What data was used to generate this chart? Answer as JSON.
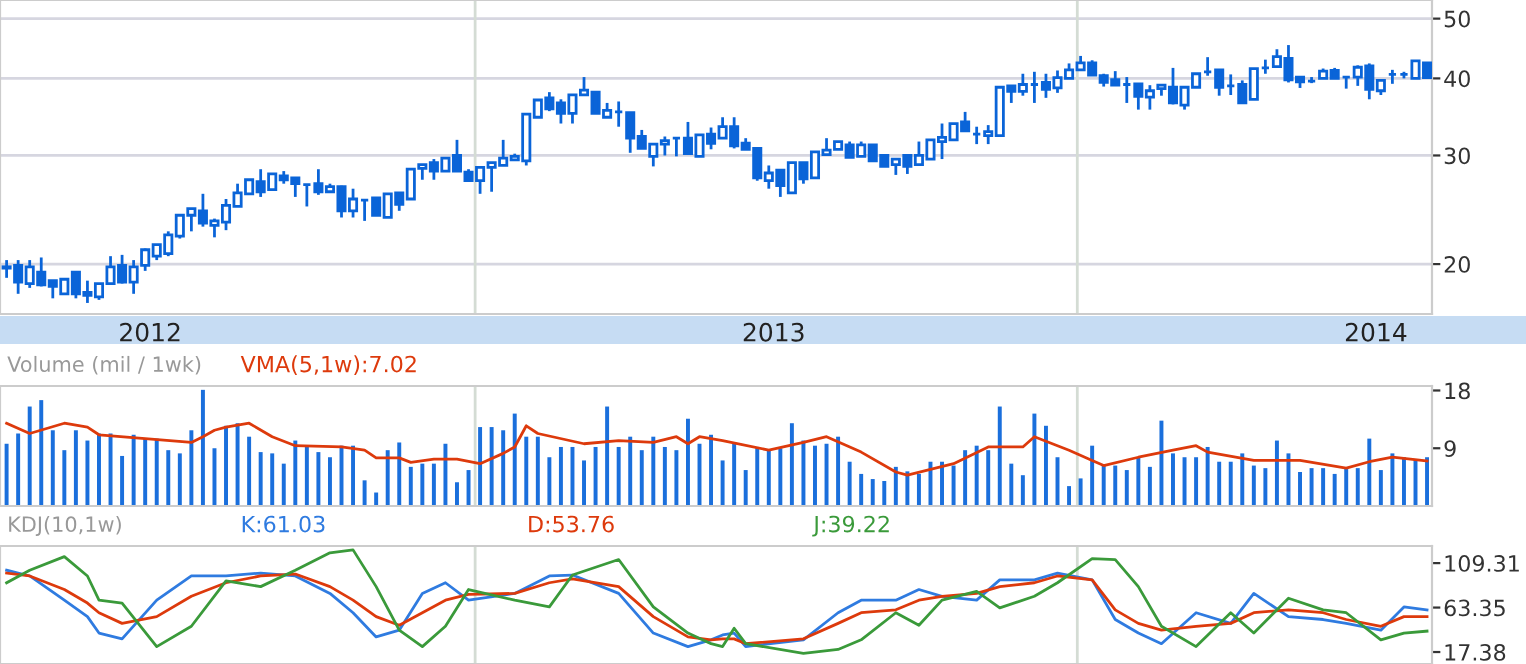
{
  "chart_data": [
    {
      "type": "candlestick",
      "color": "#0a64d8",
      "log": "y",
      "grid": "y",
      "x": [
        "2012-03-23",
        "2012-03-30",
        "2012-04-06",
        "2012-04-13",
        "2012-04-20",
        "2012-04-27",
        "2012-05-04",
        "2012-05-11",
        "2012-05-18",
        "2012-05-25",
        "2012-06-01",
        "2012-06-08",
        "2012-06-15",
        "2012-06-22",
        "2012-06-29",
        "2012-07-06",
        "2012-07-13",
        "2012-07-20",
        "2012-07-27",
        "2012-08-03",
        "2012-08-10",
        "2012-08-17",
        "2012-08-24",
        "2012-08-31",
        "2012-09-07",
        "2012-09-14",
        "2012-09-21",
        "2012-09-28",
        "2012-10-05",
        "2012-10-12",
        "2012-10-19",
        "2012-10-26",
        "2012-11-02",
        "2012-11-09",
        "2012-11-16",
        "2012-11-23",
        "2012-11-30",
        "2012-12-07",
        "2012-12-14",
        "2012-12-21",
        "2012-12-28",
        "2013-01-04",
        "2013-01-11",
        "2013-01-18",
        "2013-01-25",
        "2013-02-01",
        "2013-02-08",
        "2013-02-15",
        "2013-02-22",
        "2013-03-01",
        "2013-03-08",
        "2013-03-15",
        "2013-03-22",
        "2013-03-29",
        "2013-04-05",
        "2013-04-12",
        "2013-04-19",
        "2013-04-26",
        "2013-05-03",
        "2013-05-10",
        "2013-05-17",
        "2013-05-24",
        "2013-05-31",
        "2013-06-07",
        "2013-06-14",
        "2013-06-21",
        "2013-06-28",
        "2013-07-05",
        "2013-07-12",
        "2013-07-19",
        "2013-07-26",
        "2013-08-02",
        "2013-08-09",
        "2013-08-16",
        "2013-08-23",
        "2013-08-30",
        "2013-09-06",
        "2013-09-13",
        "2013-09-20",
        "2013-09-27",
        "2013-10-04",
        "2013-10-11",
        "2013-10-18",
        "2013-10-25",
        "2013-11-01",
        "2013-11-08",
        "2013-11-15",
        "2013-11-22",
        "2013-11-29",
        "2013-12-06",
        "2013-12-13",
        "2013-12-20",
        "2013-12-27",
        "2014-01-03",
        "2014-01-10",
        "2014-01-17",
        "2014-01-24",
        "2014-01-31",
        "2014-02-07",
        "2014-02-14",
        "2014-02-21",
        "2014-02-28",
        "2014-03-07",
        "2014-03-14",
        "2014-03-21",
        "2014-03-28",
        "2014-04-04",
        "2014-04-11",
        "2014-04-18",
        "2014-04-25",
        "2014-05-02",
        "2014-05-09",
        "2014-05-16",
        "2014-05-23",
        "2014-05-30",
        "2014-06-06",
        "2014-06-13",
        "2014-06-20",
        "2014-06-27",
        "2014-07-04",
        "2014-07-11",
        "2014-07-18",
        "2014-07-25",
        "2014-08-01"
      ],
      "ohlc": [
        [
          19.8,
          20.3,
          19.0,
          19.7
        ],
        [
          19.9,
          20.3,
          17.9,
          18.7
        ],
        [
          18.6,
          20.3,
          18.3,
          19.8
        ],
        [
          19.4,
          20.5,
          18.4,
          18.5
        ],
        [
          18.8,
          18.8,
          17.6,
          18.4
        ],
        [
          17.9,
          18.9,
          17.9,
          18.9
        ],
        [
          19.4,
          19.4,
          17.6,
          17.9
        ],
        [
          18.0,
          18.8,
          17.3,
          17.8
        ],
        [
          17.7,
          18.6,
          17.5,
          18.6
        ],
        [
          18.6,
          20.6,
          18.6,
          19.8
        ],
        [
          19.9,
          20.7,
          18.6,
          18.7
        ],
        [
          18.7,
          20.3,
          17.9,
          19.8
        ],
        [
          19.9,
          21.2,
          19.5,
          21.1
        ],
        [
          20.6,
          21.5,
          20.3,
          21.5
        ],
        [
          20.8,
          22.6,
          20.6,
          22.3
        ],
        [
          22.2,
          24.0,
          22.0,
          24.0
        ],
        [
          24.0,
          24.6,
          22.6,
          24.6
        ],
        [
          24.4,
          26.0,
          23.0,
          23.3
        ],
        [
          23.1,
          23.7,
          22.1,
          23.5
        ],
        [
          23.4,
          25.5,
          22.7,
          24.9
        ],
        [
          24.8,
          27.0,
          24.8,
          26.1
        ],
        [
          26.0,
          27.4,
          26.0,
          27.4
        ],
        [
          27.2,
          28.5,
          25.7,
          26.2
        ],
        [
          26.4,
          28.0,
          26.4,
          28.0
        ],
        [
          27.8,
          28.3,
          27.0,
          27.4
        ],
        [
          27.6,
          27.6,
          25.7,
          27.0
        ],
        [
          26.9,
          26.9,
          24.8,
          26.9
        ],
        [
          27.0,
          28.5,
          25.9,
          26.2
        ],
        [
          26.2,
          27.0,
          26.2,
          26.7
        ],
        [
          26.7,
          26.8,
          23.8,
          24.4
        ],
        [
          24.4,
          26.5,
          23.8,
          25.5
        ],
        [
          25.4,
          25.4,
          23.5,
          25.4
        ],
        [
          25.6,
          25.6,
          24.0,
          24.0
        ],
        [
          23.8,
          26.0,
          23.8,
          26.0
        ],
        [
          26.1,
          26.1,
          24.4,
          25.0
        ],
        [
          25.5,
          28.5,
          25.5,
          28.5
        ],
        [
          28.6,
          29.0,
          27.4,
          29.0
        ],
        [
          29.2,
          29.6,
          27.4,
          28.3
        ],
        [
          28.3,
          29.7,
          28.3,
          29.7
        ],
        [
          30.0,
          31.8,
          28.3,
          28.3
        ],
        [
          28.2,
          28.5,
          27.3,
          27.3
        ],
        [
          27.3,
          28.7,
          26.0,
          28.7
        ],
        [
          28.7,
          29.2,
          26.2,
          29.2
        ],
        [
          28.9,
          31.8,
          28.9,
          29.7
        ],
        [
          29.5,
          30.2,
          29.4,
          29.9
        ],
        [
          29.4,
          35.0,
          28.9,
          35.0
        ],
        [
          34.6,
          36.9,
          34.6,
          36.9
        ],
        [
          37.2,
          38.0,
          35.4,
          35.7
        ],
        [
          36.5,
          37.0,
          33.8,
          35.1
        ],
        [
          35.1,
          37.6,
          33.8,
          37.6
        ],
        [
          37.6,
          40.2,
          37.6,
          38.3
        ],
        [
          38.0,
          38.0,
          35.1,
          35.1
        ],
        [
          34.6,
          36.5,
          34.6,
          35.5
        ],
        [
          35.3,
          36.7,
          33.4,
          35.3
        ],
        [
          35.2,
          35.2,
          30.3,
          32.0
        ],
        [
          32.2,
          33.0,
          30.8,
          30.8
        ],
        [
          29.9,
          31.3,
          28.8,
          31.3
        ],
        [
          31.3,
          32.2,
          30.0,
          31.7
        ],
        [
          32.0,
          32.0,
          29.9,
          32.0
        ],
        [
          32.0,
          34.0,
          30.2,
          30.2
        ],
        [
          29.9,
          32.4,
          29.9,
          32.4
        ],
        [
          32.5,
          33.3,
          30.7,
          31.4
        ],
        [
          32.0,
          34.6,
          32.0,
          33.4
        ],
        [
          33.4,
          34.6,
          30.8,
          31.1
        ],
        [
          31.4,
          32.0,
          30.7,
          30.7
        ],
        [
          30.8,
          30.8,
          27.3,
          27.6
        ],
        [
          27.3,
          28.9,
          26.5,
          28.1
        ],
        [
          28.4,
          28.4,
          25.7,
          26.8
        ],
        [
          26.1,
          29.2,
          26.1,
          29.2
        ],
        [
          29.2,
          29.2,
          27.0,
          27.5
        ],
        [
          27.6,
          30.4,
          27.6,
          30.4
        ],
        [
          30.1,
          32.0,
          30.1,
          30.6
        ],
        [
          30.7,
          31.6,
          30.7,
          31.6
        ],
        [
          31.2,
          31.6,
          29.8,
          29.8
        ],
        [
          29.9,
          31.6,
          29.9,
          31.2
        ],
        [
          31.2,
          31.2,
          29.4,
          29.4
        ],
        [
          30.0,
          30.0,
          28.8,
          28.8
        ],
        [
          29.0,
          29.6,
          27.9,
          29.6
        ],
        [
          30.0,
          30.0,
          28.0,
          28.8
        ],
        [
          29.0,
          31.6,
          29.0,
          30.0
        ],
        [
          29.6,
          31.8,
          29.6,
          31.8
        ],
        [
          31.6,
          33.8,
          29.6,
          32.1
        ],
        [
          31.8,
          33.8,
          31.8,
          33.8
        ],
        [
          34.0,
          35.3,
          32.9,
          32.9
        ],
        [
          32.5,
          33.4,
          31.3,
          32.5
        ],
        [
          32.3,
          33.6,
          31.3,
          32.8
        ],
        [
          32.3,
          38.7,
          32.3,
          38.7
        ],
        [
          38.9,
          38.9,
          36.5,
          38.1
        ],
        [
          38.1,
          40.7,
          37.5,
          39.1
        ],
        [
          39.1,
          41.0,
          36.5,
          39.1
        ],
        [
          39.4,
          40.7,
          37.2,
          38.4
        ],
        [
          38.6,
          41.2,
          37.9,
          40.1
        ],
        [
          40.0,
          42.3,
          40.0,
          41.3
        ],
        [
          41.3,
          43.5,
          41.3,
          42.4
        ],
        [
          42.4,
          42.8,
          40.4,
          40.5
        ],
        [
          40.4,
          40.7,
          38.8,
          39.4
        ],
        [
          39.8,
          41.1,
          38.9,
          39.0
        ],
        [
          39.1,
          40.2,
          36.5,
          39.1
        ],
        [
          39.2,
          39.2,
          35.6,
          37.4
        ],
        [
          37.3,
          39.0,
          35.6,
          38.2
        ],
        [
          38.5,
          39.0,
          37.5,
          39.0
        ],
        [
          38.7,
          41.6,
          36.3,
          36.5
        ],
        [
          36.2,
          38.7,
          35.6,
          38.7
        ],
        [
          38.7,
          40.7,
          38.7,
          40.7
        ],
        [
          41.0,
          43.3,
          40.4,
          41.0
        ],
        [
          41.3,
          41.3,
          37.5,
          38.7
        ],
        [
          38.9,
          40.6,
          37.6,
          38.9
        ],
        [
          39.1,
          39.7,
          36.5,
          36.5
        ],
        [
          37.0,
          41.5,
          37.0,
          41.5
        ],
        [
          41.6,
          42.9,
          40.7,
          41.6
        ],
        [
          41.8,
          44.6,
          41.8,
          43.4
        ],
        [
          43.1,
          45.3,
          39.4,
          39.8
        ],
        [
          40.2,
          40.2,
          38.6,
          39.5
        ],
        [
          39.6,
          40.2,
          39.3,
          39.6
        ],
        [
          40.0,
          41.5,
          40.0,
          41.1
        ],
        [
          41.2,
          41.6,
          40.0,
          40.0
        ],
        [
          40.2,
          40.2,
          38.5,
          40.2
        ],
        [
          40.2,
          42.0,
          38.9,
          41.7
        ],
        [
          41.9,
          42.3,
          37.0,
          38.4
        ],
        [
          38.2,
          39.7,
          37.6,
          39.7
        ],
        [
          40.6,
          41.3,
          39.2,
          40.6
        ],
        [
          40.6,
          41.0,
          40.0,
          40.6
        ],
        [
          40.0,
          42.7,
          40.0,
          42.7
        ],
        [
          42.4,
          42.4,
          40.1,
          40.1
        ]
      ],
      "xlim": [
        "2012-03-19",
        "2014-08-04"
      ],
      "xticks": [
        {
          "value": "2012-06-18",
          "label": "2012"
        },
        {
          "value": "2013-07-01",
          "label": "2013"
        },
        {
          "value": "2014-07-01",
          "label": "2014"
        }
      ],
      "ylim": [
        16.6,
        53.6
      ],
      "yticks": [
        20,
        30,
        40,
        50
      ],
      "ref_lines": [
        {
          "axis": "x",
          "value": "2013-01-01",
          "label": null,
          "color": "#d4dcd4"
        },
        {
          "axis": "x",
          "value": "2014-01-01",
          "label": null,
          "color": "#d4dcd4"
        }
      ]
    },
    {
      "type": "bar",
      "title": "Volume (mil / 1wk)",
      "legend": "top left",
      "tick_labels": "y",
      "x": [
        "2012-03-23",
        "2012-03-30",
        "2012-04-06",
        "2012-04-13",
        "2012-04-20",
        "2012-04-27",
        "2012-05-04",
        "2012-05-11",
        "2012-05-18",
        "2012-05-25",
        "2012-06-01",
        "2012-06-08",
        "2012-06-15",
        "2012-06-22",
        "2012-06-29",
        "2012-07-06",
        "2012-07-13",
        "2012-07-20",
        "2012-07-27",
        "2012-08-03",
        "2012-08-10",
        "2012-08-17",
        "2012-08-24",
        "2012-08-31",
        "2012-09-07",
        "2012-09-14",
        "2012-09-21",
        "2012-09-28",
        "2012-10-05",
        "2012-10-12",
        "2012-10-19",
        "2012-10-26",
        "2012-11-02",
        "2012-11-09",
        "2012-11-16",
        "2012-11-23",
        "2012-11-30",
        "2012-12-07",
        "2012-12-14",
        "2012-12-21",
        "2012-12-28",
        "2013-01-04",
        "2013-01-11",
        "2013-01-18",
        "2013-01-25",
        "2013-02-01",
        "2013-02-08",
        "2013-02-15",
        "2013-02-22",
        "2013-03-01",
        "2013-03-08",
        "2013-03-15",
        "2013-03-22",
        "2013-03-29",
        "2013-04-05",
        "2013-04-12",
        "2013-04-19",
        "2013-04-26",
        "2013-05-03",
        "2013-05-10",
        "2013-05-17",
        "2013-05-24",
        "2013-05-31",
        "2013-06-07",
        "2013-06-14",
        "2013-06-21",
        "2013-06-28",
        "2013-07-05",
        "2013-07-12",
        "2013-07-19",
        "2013-07-26",
        "2013-08-02",
        "2013-08-09",
        "2013-08-16",
        "2013-08-23",
        "2013-08-30",
        "2013-09-06",
        "2013-09-13",
        "2013-09-20",
        "2013-09-27",
        "2013-10-04",
        "2013-10-11",
        "2013-10-18",
        "2013-10-25",
        "2013-11-01",
        "2013-11-08",
        "2013-11-15",
        "2013-11-22",
        "2013-11-29",
        "2013-12-06",
        "2013-12-13",
        "2013-12-20",
        "2013-12-27",
        "2014-01-03",
        "2014-01-10",
        "2014-01-17",
        "2014-01-24",
        "2014-01-31",
        "2014-02-07",
        "2014-02-14",
        "2014-02-21",
        "2014-02-28",
        "2014-03-07",
        "2014-03-14",
        "2014-03-21",
        "2014-03-28",
        "2014-04-04",
        "2014-04-11",
        "2014-04-18",
        "2014-04-25",
        "2014-05-02",
        "2014-05-09",
        "2014-05-16",
        "2014-05-23",
        "2014-05-30",
        "2014-06-06",
        "2014-06-13",
        "2014-06-20",
        "2014-06-27",
        "2014-07-04",
        "2014-07-11",
        "2014-07-18",
        "2014-07-25",
        "2014-08-01"
      ],
      "series": [
        {
          "color": "#1a6fdc",
          "values": [
            9.7,
            11.3,
            15.5,
            16.5,
            11.8,
            8.7,
            11.8,
            10.2,
            11.3,
            11.3,
            7.8,
            11.1,
            10.5,
            10.5,
            8.7,
            8.2,
            11.8,
            18.1,
            9.0,
            12.5,
            12.9,
            10.8,
            8.4,
            8.2,
            6.6,
            10.2,
            9.4,
            8.4,
            7.6,
            9.4,
            9.4,
            4.0,
            2.1,
            8.7,
            9.9,
            6.1,
            6.6,
            6.6,
            9.7,
            3.7,
            5.6,
            12.3,
            12.3,
            11.8,
            14.4,
            10.8,
            10.8,
            7.6,
            9.2,
            9.2,
            7.1,
            9.2,
            15.5,
            9.2,
            10.8,
            8.7,
            10.8,
            9.2,
            8.7,
            13.6,
            9.7,
            11.1,
            7.1,
            9.7,
            5.6,
            9.2,
            8.7,
            9.0,
            12.9,
            10.2,
            9.4,
            9.7,
            10.8,
            6.9,
            5.0,
            4.2,
            3.9,
            6.1,
            5.4,
            5.0,
            6.9,
            6.9,
            6.3,
            8.7,
            9.4,
            8.7,
            15.5,
            6.6,
            4.8,
            14.4,
            12.5,
            7.6,
            3.1,
            4.3,
            9.4,
            6.3,
            6.3,
            5.6,
            7.6,
            6.1,
            13.3,
            8.2,
            7.6,
            7.6,
            9.2,
            6.9,
            6.9,
            8.2,
            6.3,
            5.9,
            10.2,
            8.2,
            5.3,
            5.9,
            5.9,
            5.0,
            5.9,
            5.9,
            10.5,
            5.6,
            8.2,
            7.6,
            7.3,
            7.6
          ]
        },
        {
          "type": "line",
          "name": "VMA(5,1w):7.02",
          "color": "#dd3a0c",
          "x": [
            "2012-03-23",
            "2012-04-06",
            "2012-04-27",
            "2012-05-11",
            "2012-05-18",
            "2012-06-15",
            "2012-07-13",
            "2012-07-20",
            "2012-07-27",
            "2012-08-03",
            "2012-08-17",
            "2012-08-31",
            "2012-09-14",
            "2012-10-12",
            "2012-10-26",
            "2012-11-02",
            "2012-11-16",
            "2012-11-23",
            "2012-12-07",
            "2012-12-21",
            "2013-01-04",
            "2013-01-18",
            "2013-01-25",
            "2013-02-01",
            "2013-02-08",
            "2013-03-08",
            "2013-03-29",
            "2013-04-19",
            "2013-05-03",
            "2013-05-10",
            "2013-05-17",
            "2013-05-31",
            "2013-06-28",
            "2013-07-19",
            "2013-08-02",
            "2013-08-23",
            "2013-09-13",
            "2013-09-20",
            "2013-10-18",
            "2013-11-08",
            "2013-11-29",
            "2013-12-06",
            "2013-12-27",
            "2014-01-10",
            "2014-01-17",
            "2014-02-07",
            "2014-02-28",
            "2014-03-14",
            "2014-03-21",
            "2014-04-18",
            "2014-05-16",
            "2014-06-13",
            "2014-06-27",
            "2014-07-11",
            "2014-08-01"
          ],
          "values": [
            12.9,
            11.3,
            12.9,
            12.3,
            11.1,
            10.5,
            9.9,
            10.8,
            11.8,
            12.3,
            12.9,
            10.8,
            9.4,
            9.2,
            8.7,
            7.5,
            7.5,
            6.8,
            7.3,
            7.3,
            6.6,
            8.2,
            9.2,
            12.5,
            11.3,
            9.7,
            10.2,
            9.9,
            10.8,
            9.7,
            10.8,
            10.2,
            8.7,
            9.9,
            10.8,
            8.4,
            5.3,
            4.8,
            6.6,
            9.2,
            9.2,
            10.8,
            8.7,
            7.1,
            6.3,
            7.6,
            8.7,
            9.4,
            8.4,
            7.1,
            7.1,
            5.9,
            6.9,
            7.6,
            7.0
          ]
        }
      ],
      "xlim": [
        "2012-03-19",
        "2014-08-04"
      ],
      "ylim": [
        0,
        18.7
      ],
      "yticks": [
        9,
        18
      ],
      "ref_lines": [
        {
          "axis": "x",
          "value": "2013-01-01",
          "label": null,
          "color": "#d4dcd4"
        },
        {
          "axis": "x",
          "value": "2014-01-01",
          "label": null,
          "color": "#d4dcd4"
        }
      ]
    },
    {
      "type": "line",
      "title": "KDJ(10,1w)",
      "legend": "top left",
      "tick_labels": "y",
      "x": [
        "2012-03-23",
        "2012-04-06",
        "2012-04-27",
        "2012-05-11",
        "2012-05-18",
        "2012-06-01",
        "2012-06-22",
        "2012-07-13",
        "2012-08-03",
        "2012-08-24",
        "2012-09-14",
        "2012-10-05",
        "2012-10-19",
        "2012-11-02",
        "2012-11-16",
        "2012-11-30",
        "2012-12-14",
        "2012-12-28",
        "2013-01-25",
        "2013-02-15",
        "2013-03-01",
        "2013-03-29",
        "2013-04-19",
        "2013-05-10",
        "2013-05-24",
        "2013-05-31",
        "2013-06-07",
        "2013-06-14",
        "2013-07-19",
        "2013-08-09",
        "2013-08-23",
        "2013-09-13",
        "2013-09-27",
        "2013-10-11",
        "2013-11-01",
        "2013-11-15",
        "2013-12-06",
        "2013-12-20",
        "2014-01-10",
        "2014-01-24",
        "2014-02-07",
        "2014-02-21",
        "2014-03-14",
        "2014-04-04",
        "2014-04-18",
        "2014-05-09",
        "2014-05-30",
        "2014-06-13",
        "2014-07-04",
        "2014-07-18",
        "2014-08-01"
      ],
      "series": [
        {
          "name": "K:61.03",
          "color": "#2f7be0",
          "values": [
            102,
            96,
            71,
            54,
            37,
            31,
            71,
            96,
            96,
            99,
            96,
            78,
            58,
            33,
            40,
            78,
            89,
            71,
            78,
            96,
            97,
            78,
            37,
            23,
            30,
            35,
            37,
            23,
            30,
            58,
            71,
            71,
            82,
            75,
            71,
            92,
            92,
            99,
            92,
            51,
            37,
            26,
            58,
            47,
            78,
            54,
            51,
            47,
            40,
            64,
            61
          ]
        },
        {
          "name": "D:53.76",
          "color": "#dd3a0c",
          "values": [
            99,
            96,
            82,
            68,
            58,
            47,
            54,
            75,
            89,
            96,
            98,
            85,
            71,
            54,
            45,
            58,
            71,
            77,
            78,
            89,
            93,
            85,
            54,
            33,
            30,
            31,
            31,
            26,
            31,
            47,
            58,
            61,
            71,
            75,
            78,
            85,
            89,
            96,
            92,
            61,
            47,
            40,
            44,
            47,
            58,
            61,
            58,
            51,
            44,
            54,
            54
          ]
        },
        {
          "name": "J:39.22",
          "color": "#3a9a3a",
          "values": [
            89,
            102,
            116,
            96,
            71,
            68,
            23,
            44,
            91,
            85,
            102,
            120,
            123,
            85,
            40,
            23,
            44,
            82,
            71,
            64,
            97,
            113,
            64,
            37,
            26,
            23,
            42,
            26,
            16,
            20,
            30,
            58,
            45,
            71,
            80,
            63,
            75,
            89,
            114,
            113,
            85,
            44,
            23,
            58,
            37,
            73,
            61,
            58,
            30,
            37,
            39
          ]
        }
      ],
      "xlim": [
        "2012-03-19",
        "2014-08-04"
      ],
      "ylim": [
        5,
        127
      ],
      "yticks": [
        17.38,
        63.35,
        109.31
      ],
      "ref_lines": [
        {
          "axis": "x",
          "value": "2013-01-01",
          "label": null,
          "color": "#d4dcd4"
        },
        {
          "axis": "x",
          "value": "2014-01-01",
          "label": null,
          "color": "#d4dcd4"
        }
      ]
    }
  ]
}
